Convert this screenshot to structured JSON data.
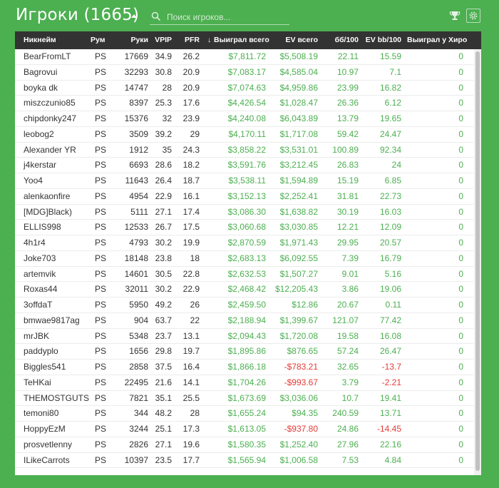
{
  "header": {
    "title": "Игроки (1665)",
    "search_placeholder": "Поиск игроков..."
  },
  "icons": {
    "caret": "caret-up-icon",
    "search": "search-icon",
    "trophy": "trophy-icon",
    "settings": "gear-icon",
    "sort": "arrow-down-icon"
  },
  "colors": {
    "background": "#4caf50",
    "header_row": "#333333",
    "positive": "#4caf50",
    "negative": "#e53935"
  },
  "table": {
    "columns": {
      "nickname": "Никнейм",
      "room": "Рум",
      "hands": "Руки",
      "vpip": "VPIP",
      "pfr": "PFR",
      "won": "Выиграл всего",
      "ev": "EV всего",
      "bb100": "бб/100",
      "evbb100": "EV bb/100",
      "won_vs_hero": "Выиграл у Хиро"
    },
    "sort_arrow": "↓",
    "rows": [
      {
        "nick": "BearFromLT",
        "room": "PS",
        "hands": "17669",
        "vpip": "34.9",
        "pfr": "26.2",
        "won": "$7,811.72",
        "ev": "$5,508.19",
        "bb": "22.11",
        "evbb": "15.59",
        "hero": "0"
      },
      {
        "nick": "Bagrovui",
        "room": "PS",
        "hands": "32293",
        "vpip": "30.8",
        "pfr": "20.9",
        "won": "$7,083.17",
        "ev": "$4,585.04",
        "bb": "10.97",
        "evbb": "7.1",
        "hero": "0"
      },
      {
        "nick": "boyka dk",
        "room": "PS",
        "hands": "14747",
        "vpip": "28",
        "pfr": "20.9",
        "won": "$7,074.63",
        "ev": "$4,959.86",
        "bb": "23.99",
        "evbb": "16.82",
        "hero": "0"
      },
      {
        "nick": "miszczunio85",
        "room": "PS",
        "hands": "8397",
        "vpip": "25.3",
        "pfr": "17.6",
        "won": "$4,426.54",
        "ev": "$1,028.47",
        "bb": "26.36",
        "evbb": "6.12",
        "hero": "0"
      },
      {
        "nick": "chipdonky247",
        "room": "PS",
        "hands": "15376",
        "vpip": "32",
        "pfr": "23.9",
        "won": "$4,240.08",
        "ev": "$6,043.89",
        "bb": "13.79",
        "evbb": "19.65",
        "hero": "0"
      },
      {
        "nick": "leobog2",
        "room": "PS",
        "hands": "3509",
        "vpip": "39.2",
        "pfr": "29",
        "won": "$4,170.11",
        "ev": "$1,717.08",
        "bb": "59.42",
        "evbb": "24.47",
        "hero": "0"
      },
      {
        "nick": "Alexander YR",
        "room": "PS",
        "hands": "1912",
        "vpip": "35",
        "pfr": "24.3",
        "won": "$3,858.22",
        "ev": "$3,531.01",
        "bb": "100.89",
        "evbb": "92.34",
        "hero": "0"
      },
      {
        "nick": "j4kerstar",
        "room": "PS",
        "hands": "6693",
        "vpip": "28.6",
        "pfr": "18.2",
        "won": "$3,591.76",
        "ev": "$3,212.45",
        "bb": "26.83",
        "evbb": "24",
        "hero": "0"
      },
      {
        "nick": "Yoo4",
        "room": "PS",
        "hands": "11643",
        "vpip": "26.4",
        "pfr": "18.7",
        "won": "$3,538.11",
        "ev": "$1,594.89",
        "bb": "15.19",
        "evbb": "6.85",
        "hero": "0"
      },
      {
        "nick": "alenkaonfire",
        "room": "PS",
        "hands": "4954",
        "vpip": "22.9",
        "pfr": "16.1",
        "won": "$3,152.13",
        "ev": "$2,252.41",
        "bb": "31.81",
        "evbb": "22.73",
        "hero": "0"
      },
      {
        "nick": "[MDG]Black)",
        "room": "PS",
        "hands": "5111",
        "vpip": "27.1",
        "pfr": "17.4",
        "won": "$3,086.30",
        "ev": "$1,638.82",
        "bb": "30.19",
        "evbb": "16.03",
        "hero": "0"
      },
      {
        "nick": "ELLIS998",
        "room": "PS",
        "hands": "12533",
        "vpip": "26.7",
        "pfr": "17.5",
        "won": "$3,060.68",
        "ev": "$3,030.85",
        "bb": "12.21",
        "evbb": "12.09",
        "hero": "0"
      },
      {
        "nick": "4h1r4",
        "room": "PS",
        "hands": "4793",
        "vpip": "30.2",
        "pfr": "19.9",
        "won": "$2,870.59",
        "ev": "$1,971.43",
        "bb": "29.95",
        "evbb": "20.57",
        "hero": "0"
      },
      {
        "nick": "Joke703",
        "room": "PS",
        "hands": "18148",
        "vpip": "23.8",
        "pfr": "18",
        "won": "$2,683.13",
        "ev": "$6,092.55",
        "bb": "7.39",
        "evbb": "16.79",
        "hero": "0"
      },
      {
        "nick": "artemvik",
        "room": "PS",
        "hands": "14601",
        "vpip": "30.5",
        "pfr": "22.8",
        "won": "$2,632.53",
        "ev": "$1,507.27",
        "bb": "9.01",
        "evbb": "5.16",
        "hero": "0"
      },
      {
        "nick": "Roxas44",
        "room": "PS",
        "hands": "32011",
        "vpip": "30.2",
        "pfr": "22.9",
        "won": "$2,468.42",
        "ev": "$12,205.43",
        "bb": "3.86",
        "evbb": "19.06",
        "hero": "0"
      },
      {
        "nick": "3offdaT",
        "room": "PS",
        "hands": "5950",
        "vpip": "49.2",
        "pfr": "26",
        "won": "$2,459.50",
        "ev": "$12.86",
        "bb": "20.67",
        "evbb": "0.11",
        "hero": "0"
      },
      {
        "nick": "bmwae9817ag",
        "room": "PS",
        "hands": "904",
        "vpip": "63.7",
        "pfr": "22",
        "won": "$2,188.94",
        "ev": "$1,399.67",
        "bb": "121.07",
        "evbb": "77.42",
        "hero": "0"
      },
      {
        "nick": "mrJBK",
        "room": "PS",
        "hands": "5348",
        "vpip": "23.7",
        "pfr": "13.1",
        "won": "$2,094.43",
        "ev": "$1,720.08",
        "bb": "19.58",
        "evbb": "16.08",
        "hero": "0"
      },
      {
        "nick": "paddyplo",
        "room": "PS",
        "hands": "1656",
        "vpip": "29.8",
        "pfr": "19.7",
        "won": "$1,895.86",
        "ev": "$876.65",
        "bb": "57.24",
        "evbb": "26.47",
        "hero": "0"
      },
      {
        "nick": "Biggles541",
        "room": "PS",
        "hands": "2858",
        "vpip": "37.5",
        "pfr": "16.4",
        "won": "$1,866.18",
        "ev": "-$783.21",
        "bb": "32.65",
        "evbb": "-13.7",
        "hero": "0"
      },
      {
        "nick": "TeHKai",
        "room": "PS",
        "hands": "22495",
        "vpip": "21.6",
        "pfr": "14.1",
        "won": "$1,704.26",
        "ev": "-$993.67",
        "bb": "3.79",
        "evbb": "-2.21",
        "hero": "0"
      },
      {
        "nick": "THEMOSTGUTS",
        "room": "PS",
        "hands": "7821",
        "vpip": "35.1",
        "pfr": "25.5",
        "won": "$1,673.69",
        "ev": "$3,036.06",
        "bb": "10.7",
        "evbb": "19.41",
        "hero": "0"
      },
      {
        "nick": "temoni80",
        "room": "PS",
        "hands": "344",
        "vpip": "48.2",
        "pfr": "28",
        "won": "$1,655.24",
        "ev": "$94.35",
        "bb": "240.59",
        "evbb": "13.71",
        "hero": "0"
      },
      {
        "nick": "HoppyEzM",
        "room": "PS",
        "hands": "3244",
        "vpip": "25.1",
        "pfr": "17.3",
        "won": "$1,613.05",
        "ev": "-$937.80",
        "bb": "24.86",
        "evbb": "-14.45",
        "hero": "0"
      },
      {
        "nick": "prosvetlenny",
        "room": "PS",
        "hands": "2826",
        "vpip": "27.1",
        "pfr": "19.6",
        "won": "$1,580.35",
        "ev": "$1,252.40",
        "bb": "27.96",
        "evbb": "22.16",
        "hero": "0"
      },
      {
        "nick": "ILikeCarrots",
        "room": "PS",
        "hands": "10397",
        "vpip": "23.5",
        "pfr": "17.7",
        "won": "$1,565.94",
        "ev": "$1,006.58",
        "bb": "7.53",
        "evbb": "4.84",
        "hero": "0"
      }
    ]
  }
}
